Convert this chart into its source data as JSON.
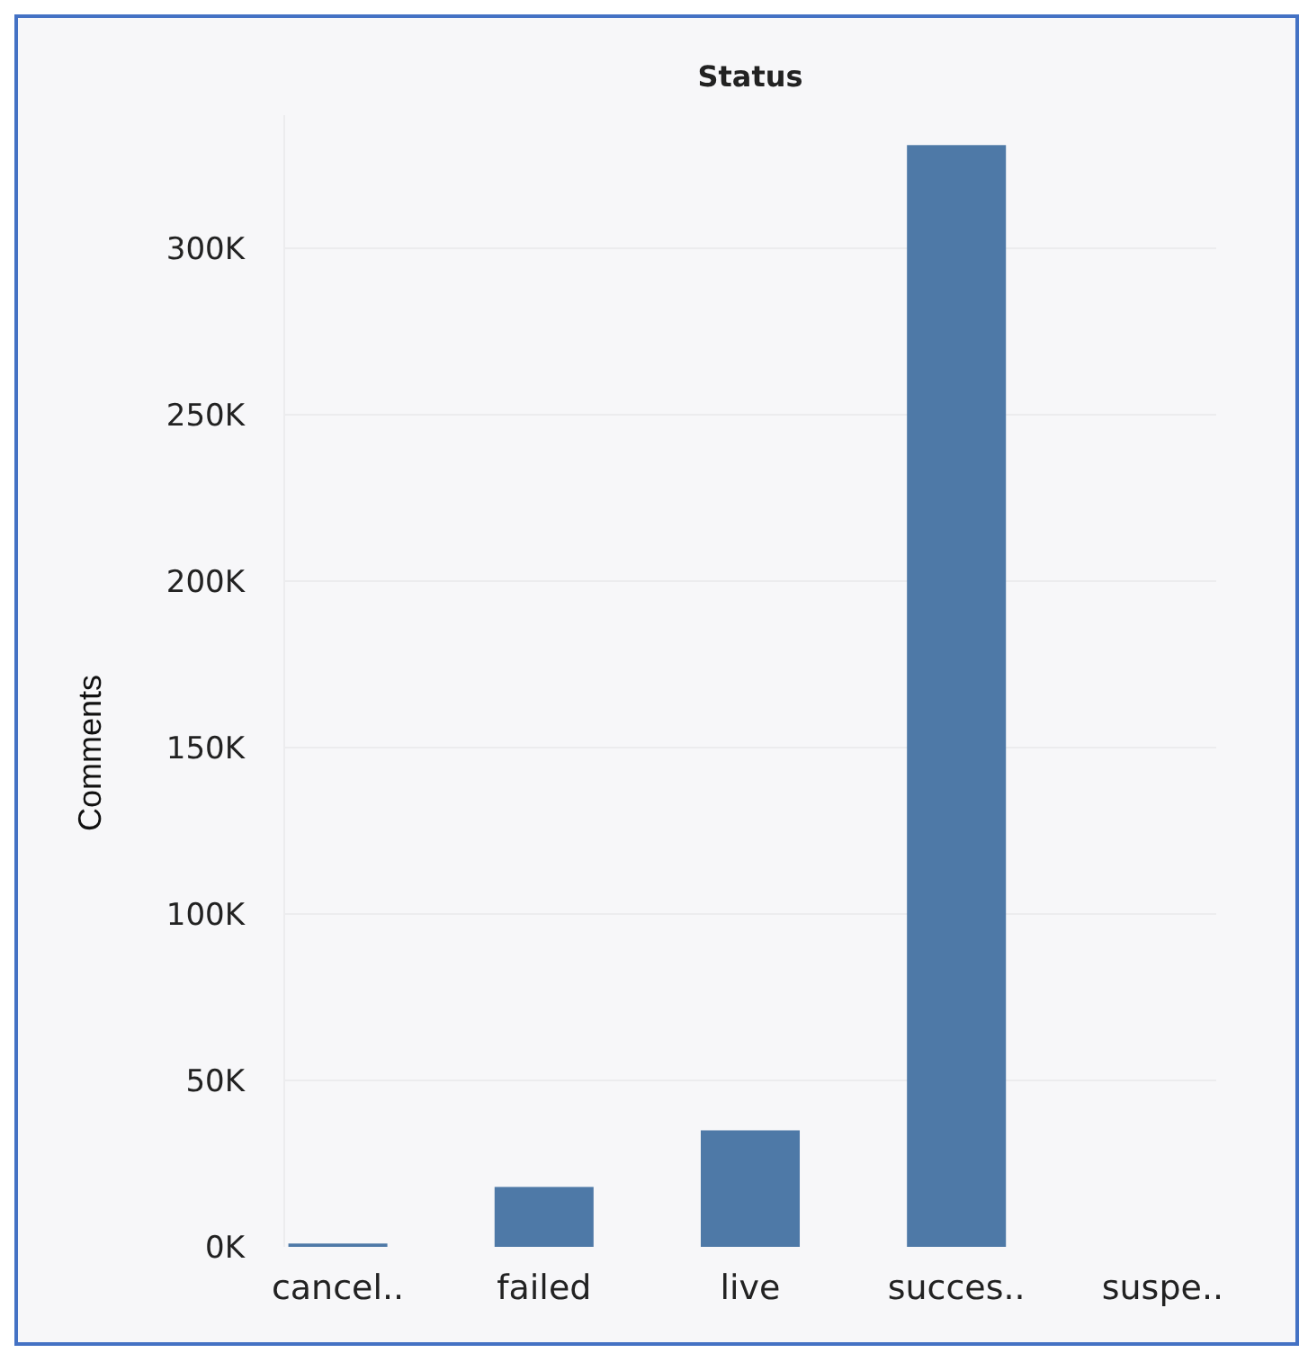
{
  "chart_data": {
    "type": "bar",
    "title": "Status",
    "ylabel": "Comments",
    "categories": [
      "cancel..",
      "failed",
      "live",
      "succes..",
      "suspe.."
    ],
    "values": [
      1000,
      18000,
      35000,
      331000,
      0
    ],
    "color": "#4e79a7",
    "ylim": [
      0,
      340000
    ],
    "yticks": [
      {
        "value": 0,
        "label": "0K"
      },
      {
        "value": 50000,
        "label": "50K"
      },
      {
        "value": 100000,
        "label": "100K"
      },
      {
        "value": 150000,
        "label": "150K"
      },
      {
        "value": 200000,
        "label": "200K"
      },
      {
        "value": 250000,
        "label": "250K"
      },
      {
        "value": 300000,
        "label": "300K"
      }
    ],
    "grid": "y"
  }
}
